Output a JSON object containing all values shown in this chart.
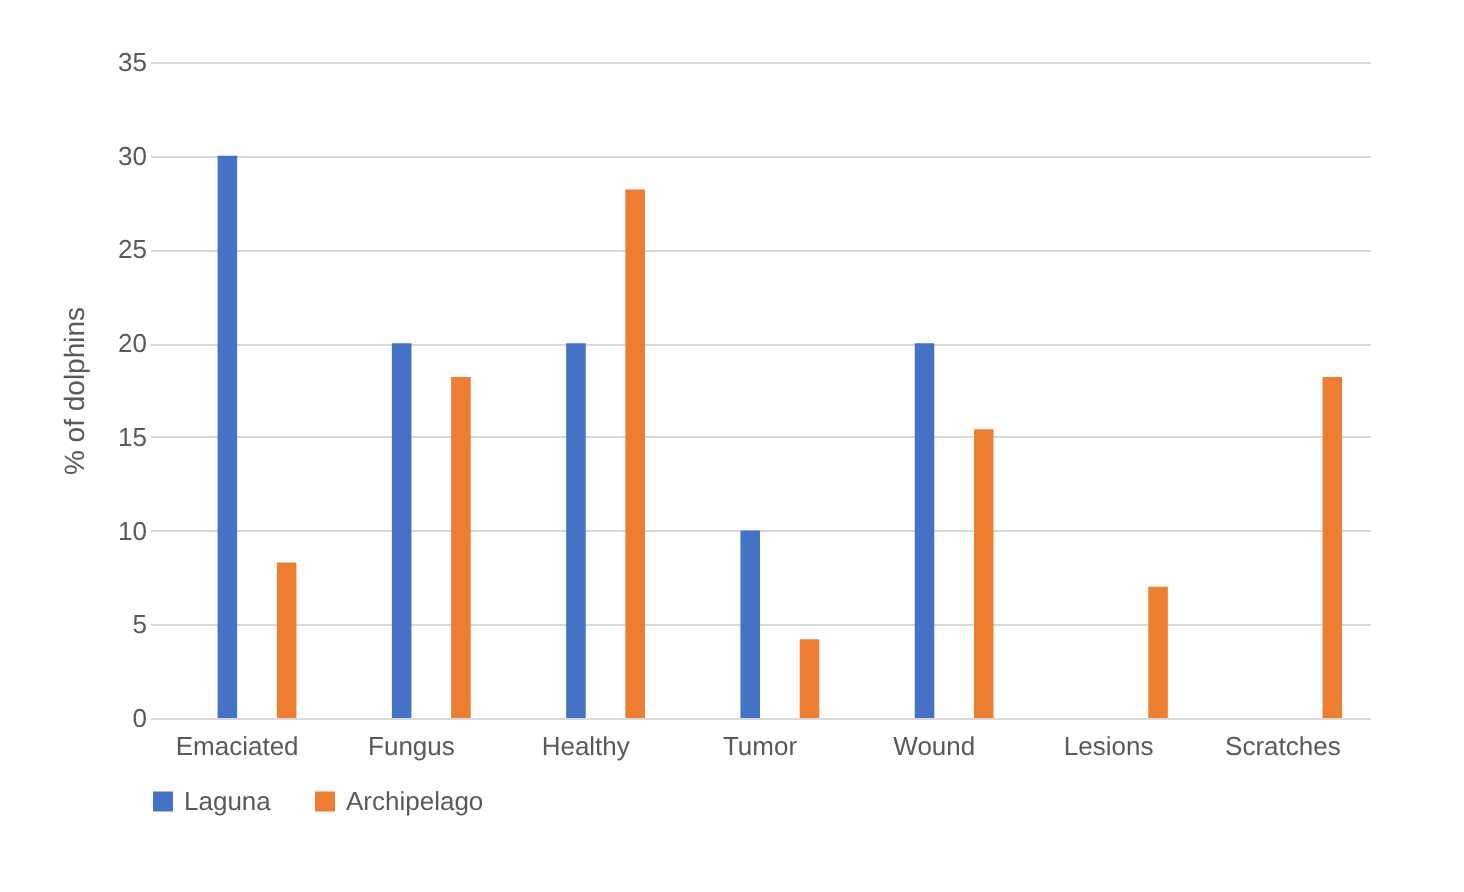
{
  "chart_data": {
    "type": "bar",
    "ylabel": "% of dolphins",
    "categories": [
      "Emaciated",
      "Fungus",
      "Healthy",
      "Tumor",
      "Wound",
      "Lesions",
      "Scratches"
    ],
    "series": [
      {
        "name": "Laguna",
        "color": "#4472c4",
        "values": [
          30,
          20,
          20,
          10,
          20,
          null,
          null
        ]
      },
      {
        "name": "Archipelago",
        "color": "#ed7d31",
        "values": [
          8.3,
          18.2,
          28.2,
          4.2,
          15.4,
          7.0,
          18.2
        ]
      }
    ],
    "ylim": [
      0,
      35
    ],
    "yticks": [
      0,
      5,
      10,
      15,
      20,
      25,
      30,
      35
    ],
    "grid": "y",
    "legend": "bottom"
  }
}
